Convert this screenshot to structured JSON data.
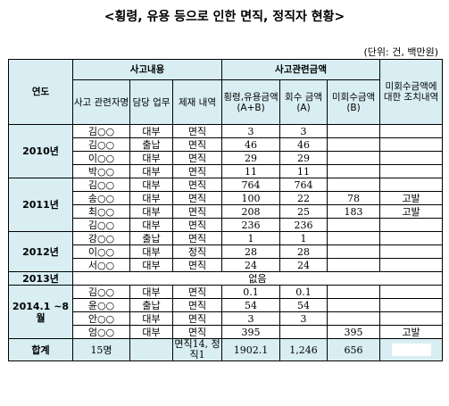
{
  "title": "<횡령, 유용 등으로 인한 면직, 정직자 현황>",
  "unit": "(단위: 건, 백만원)",
  "headers": {
    "year": "연도",
    "group_incident": "사고내용",
    "group_amounts": "사고관련금액",
    "person": "사고 관련자명",
    "duty": "담당 업무",
    "discipline": "제재 내역",
    "embezzled": "횡령,유용금액 (A+B)",
    "recovered": "회수 금액 (A)",
    "unrecovered": "미회수금액 (B)",
    "action": "미회수금액에 대한 조치내역"
  },
  "rows": [
    {
      "year": "2010년",
      "person": "김○○",
      "duty": "대부",
      "discipline": "면직",
      "embezzled": "3",
      "recovered": "3",
      "unrecovered": "",
      "action": ""
    },
    {
      "year": "",
      "person": "김○○",
      "duty": "출납",
      "discipline": "면직",
      "embezzled": "46",
      "recovered": "46",
      "unrecovered": "",
      "action": ""
    },
    {
      "year": "",
      "person": "이○○",
      "duty": "대부",
      "discipline": "면직",
      "embezzled": "29",
      "recovered": "29",
      "unrecovered": "",
      "action": ""
    },
    {
      "year": "",
      "person": "박○○",
      "duty": "대부",
      "discipline": "면직",
      "embezzled": "11",
      "recovered": "11",
      "unrecovered": "",
      "action": ""
    },
    {
      "year": "2011년",
      "person": "김○○",
      "duty": "대부",
      "discipline": "면직",
      "embezzled": "764",
      "recovered": "764",
      "unrecovered": "",
      "action": ""
    },
    {
      "year": "",
      "person": "송○○",
      "duty": "대부",
      "discipline": "면직",
      "embezzled": "100",
      "recovered": "22",
      "unrecovered": "78",
      "action": "고발"
    },
    {
      "year": "",
      "person": "최○○",
      "duty": "대부",
      "discipline": "면직",
      "embezzled": "208",
      "recovered": "25",
      "unrecovered": "183",
      "action": "고발"
    },
    {
      "year": "",
      "person": "김○○",
      "duty": "대부",
      "discipline": "면직",
      "embezzled": "236",
      "recovered": "236",
      "unrecovered": "",
      "action": ""
    },
    {
      "year": "2012년",
      "person": "강○○",
      "duty": "출납",
      "discipline": "면직",
      "embezzled": "1",
      "recovered": "1",
      "unrecovered": "",
      "action": ""
    },
    {
      "year": "",
      "person": "이○○",
      "duty": "대부",
      "discipline": "정직",
      "embezzled": "28",
      "recovered": "28",
      "unrecovered": "",
      "action": ""
    },
    {
      "year": "",
      "person": "서○○",
      "duty": "대부",
      "discipline": "면직",
      "embezzled": "24",
      "recovered": "24",
      "unrecovered": "",
      "action": ""
    },
    {
      "year": "2014.1 ~8월",
      "person": "김○○",
      "duty": "대부",
      "discipline": "면직",
      "embezzled": "0.1",
      "recovered": "0.1",
      "unrecovered": "",
      "action": ""
    },
    {
      "year": "",
      "person": "윤○○",
      "duty": "출납",
      "discipline": "면직",
      "embezzled": "54",
      "recovered": "54",
      "unrecovered": "",
      "action": ""
    },
    {
      "year": "",
      "person": "안○○",
      "duty": "대부",
      "discipline": "면직",
      "embezzled": "3",
      "recovered": "3",
      "unrecovered": "",
      "action": ""
    },
    {
      "year": "",
      "person": "엄○○",
      "duty": "대부",
      "discipline": "면직",
      "embezzled": "395",
      "recovered": "",
      "unrecovered": "395",
      "action": "고발"
    }
  ],
  "year_2013": {
    "year": "2013년",
    "note": "없음"
  },
  "total": {
    "label": "합계",
    "persons": "15명",
    "discipline": "면직14, 정직1",
    "embezzled": "1902.1",
    "recovered": "1,246",
    "unrecovered": "656",
    "action": ""
  }
}
